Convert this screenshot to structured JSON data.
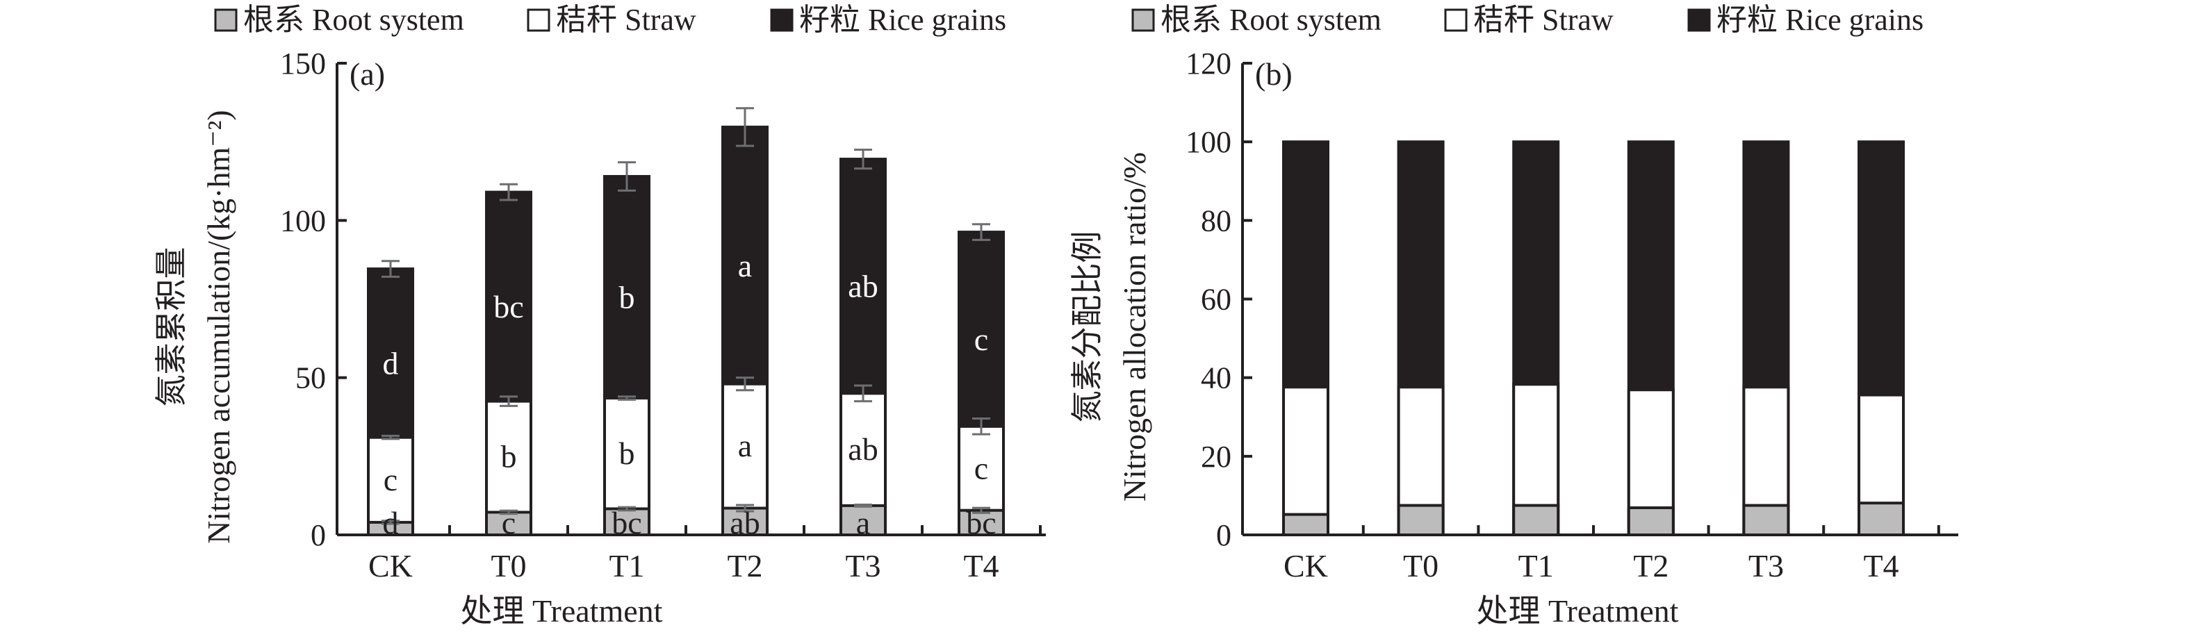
{
  "chart_data": [
    {
      "type": "bar",
      "stacked": true,
      "panel_label": "(a)",
      "categories": [
        "CK",
        "T0",
        "T1",
        "T2",
        "T3",
        "T4"
      ],
      "legend": [
        "根系 Root system",
        "秸秆 Straw",
        "籽粒 Rice grains"
      ],
      "legend_placement": "top",
      "ylabel_cn": "氮素累积量",
      "ylabel_en": "Nitrogen accumulation/(kg·hm⁻²)",
      "xlabel": "处理 Treatment",
      "ylim": [
        0,
        150
      ],
      "yticks": [
        0,
        50,
        100,
        150
      ],
      "cumulative_tops": {
        "root": [
          4.0,
          7.2,
          8.3,
          8.5,
          9.3,
          7.8
        ],
        "straw": [
          31.0,
          42.5,
          43.5,
          48.0,
          45.0,
          34.5
        ],
        "total": [
          84.6,
          109.0,
          114.0,
          129.7,
          119.5,
          96.3
        ]
      },
      "error": {
        "root": [
          0.5,
          0.5,
          0.5,
          1.0,
          0.3,
          0.8
        ],
        "straw": [
          0.5,
          1.5,
          0.5,
          2.0,
          2.5,
          2.5
        ],
        "total": [
          2.5,
          2.5,
          4.5,
          6.0,
          3.0,
          2.5
        ]
      },
      "letters": {
        "root": [
          "d",
          "c",
          "bc",
          "ab",
          "a",
          "bc"
        ],
        "straw": [
          "c",
          "b",
          "b",
          "a",
          "ab",
          "c"
        ],
        "grain": [
          "d",
          "bc",
          "b",
          "a",
          "ab",
          "c"
        ]
      }
    },
    {
      "type": "bar",
      "stacked": true,
      "panel_label": "(b)",
      "categories": [
        "CK",
        "T0",
        "T1",
        "T2",
        "T3",
        "T4"
      ],
      "legend": [
        "根系 Root system",
        "秸秆 Straw",
        "籽粒 Rice grains"
      ],
      "legend_placement": "top",
      "ylabel_cn": "氮素分配比例",
      "ylabel_en": "Nitrogen allocation ratio/%",
      "xlabel": "处理 Treatment",
      "ylim": [
        0,
        120
      ],
      "yticks": [
        0,
        20,
        40,
        60,
        80,
        100,
        120
      ],
      "cumulative_tops": {
        "root": [
          5.2,
          7.5,
          7.5,
          6.9,
          7.5,
          8.1
        ],
        "straw": [
          37.6,
          37.6,
          38.3,
          36.9,
          37.6,
          35.6
        ],
        "total": [
          100,
          100,
          100,
          100,
          100,
          100
        ]
      }
    }
  ],
  "colors": {
    "root": "#bcbcbc",
    "straw": "#ffffff",
    "grain": "#231f20",
    "error": "#6d6e71"
  }
}
